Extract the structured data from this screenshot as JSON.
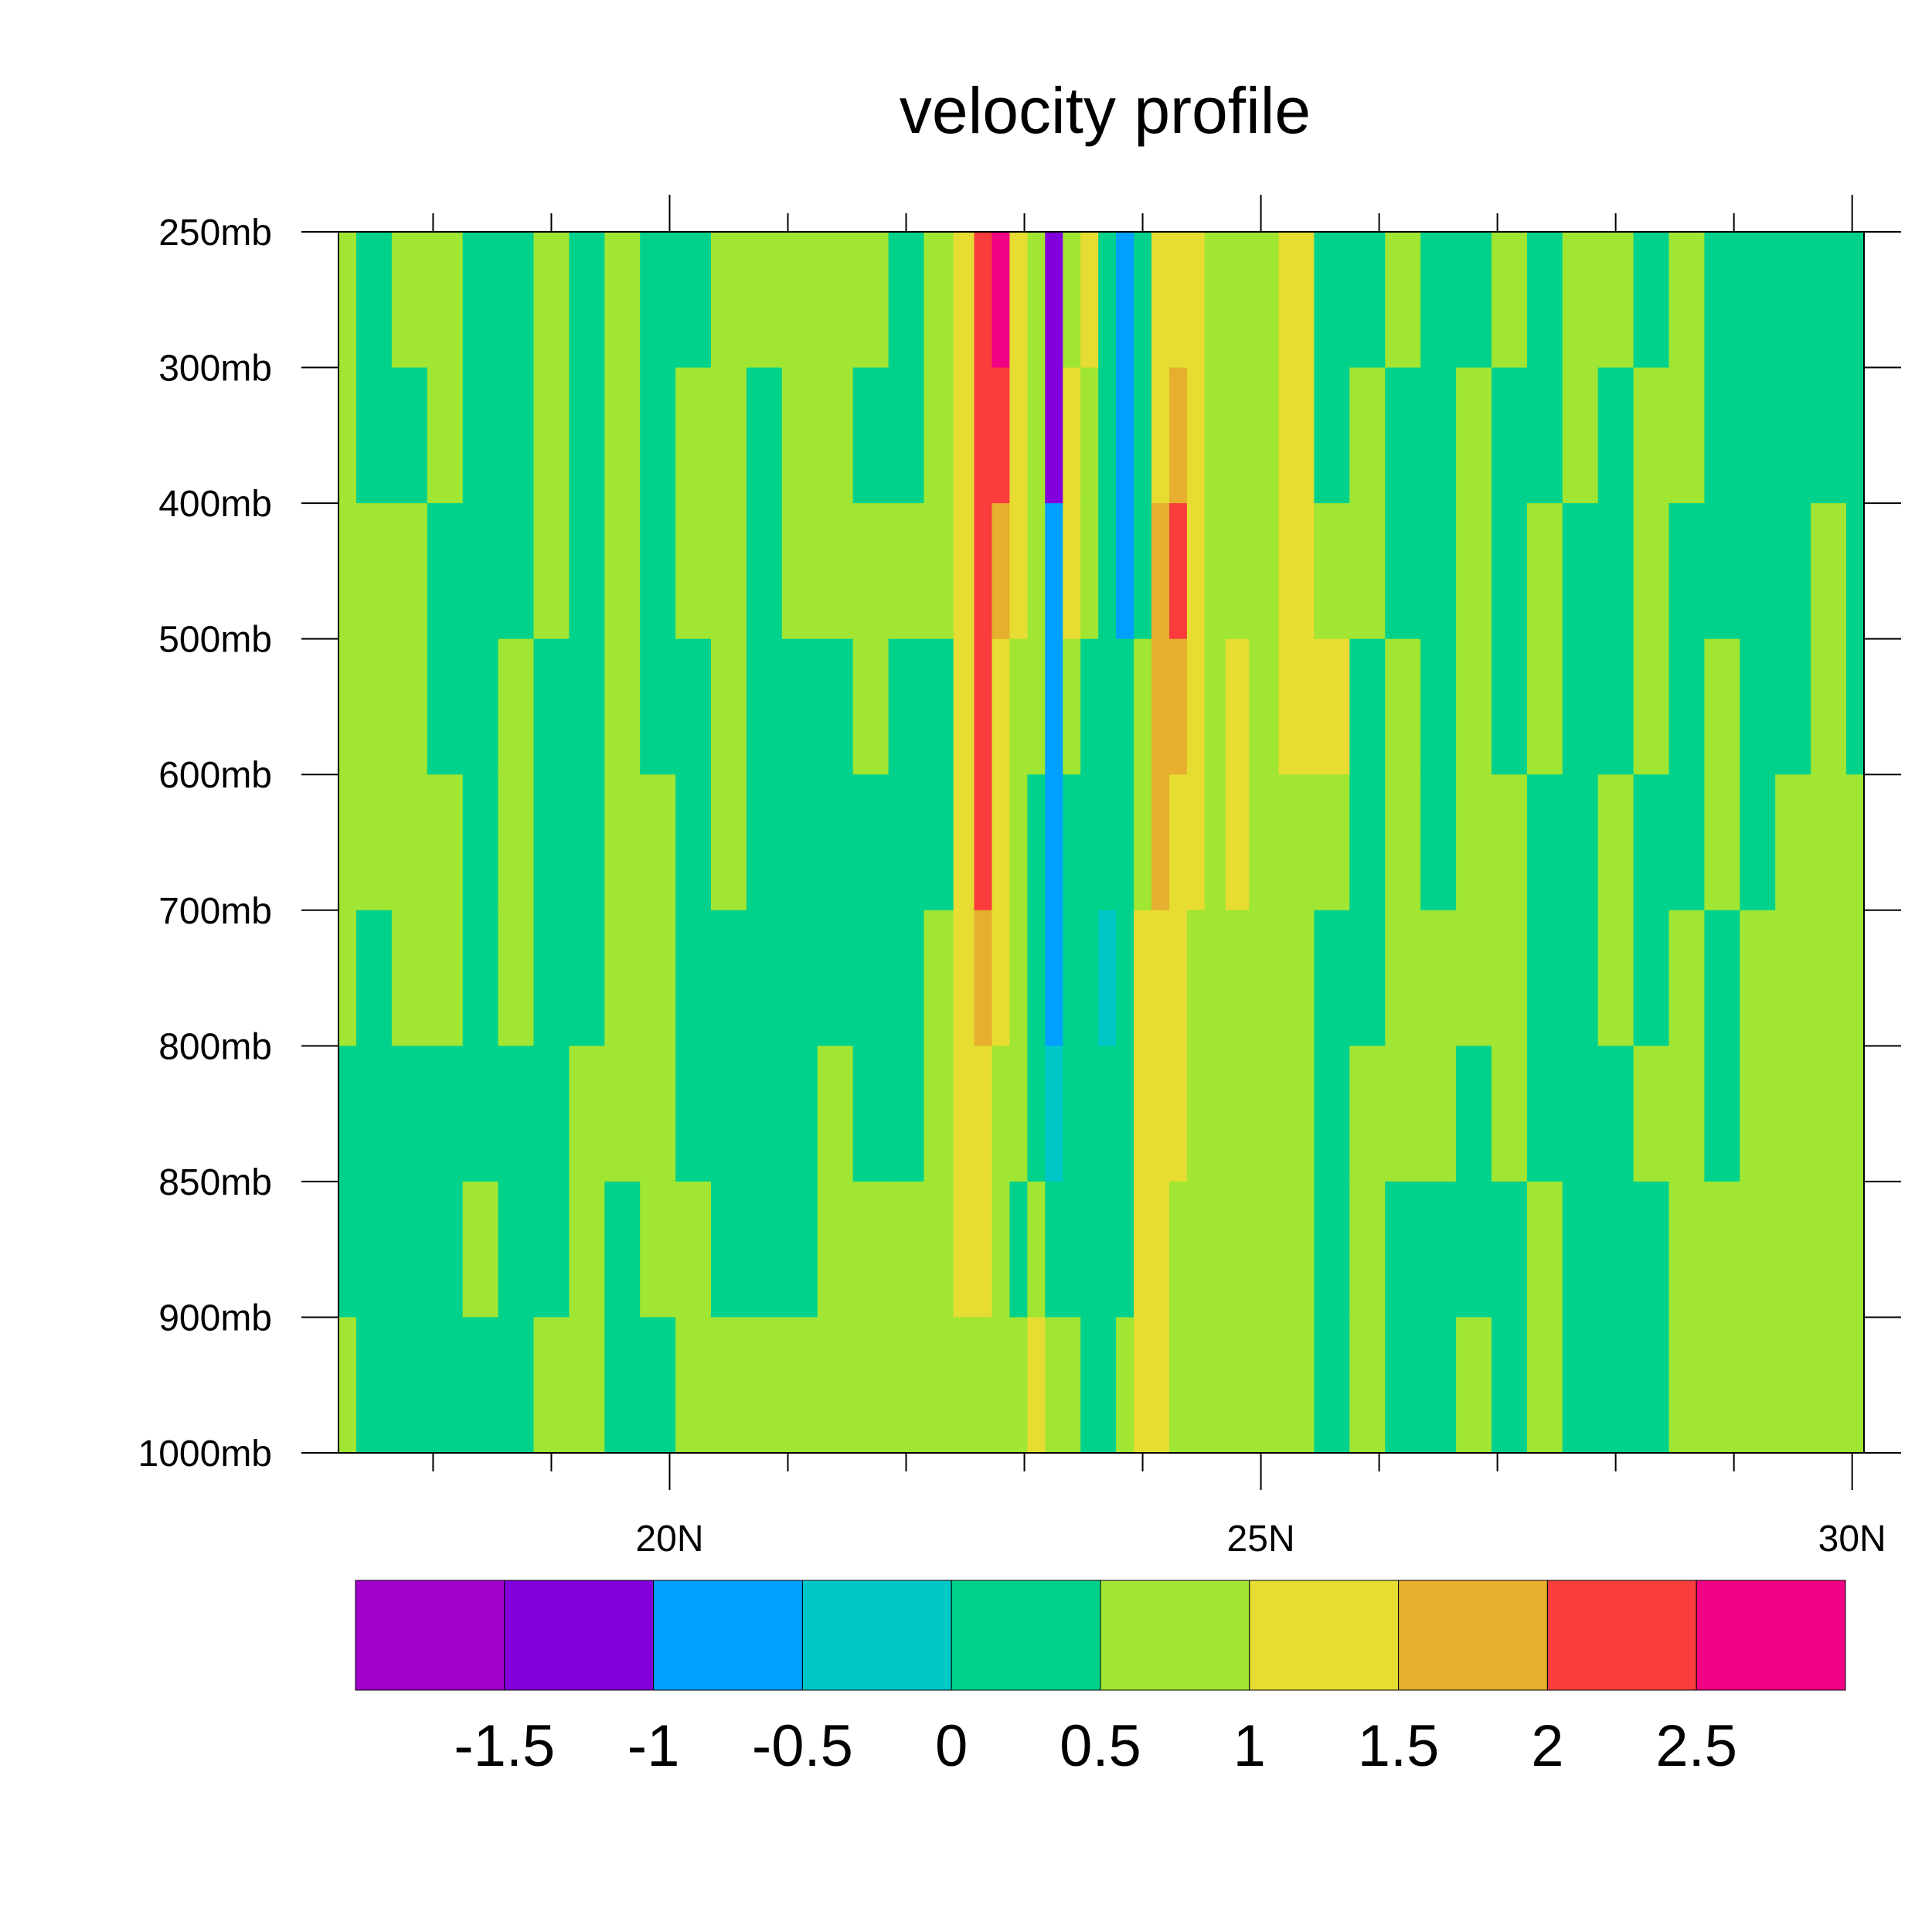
{
  "chart_data": {
    "type": "heatmap",
    "title": "velocity profile",
    "x_axis": {
      "ticks": [
        20,
        25,
        30
      ],
      "tick_labels": [
        "20N",
        "25N",
        "30N"
      ],
      "minor_ticks": [
        18,
        19,
        21,
        22,
        23,
        24,
        26,
        27,
        28,
        29
      ],
      "range": [
        17.2,
        30.1
      ]
    },
    "y_axis": {
      "levels": [
        250,
        300,
        400,
        500,
        600,
        700,
        800,
        850,
        900,
        1000
      ],
      "tick_labels": [
        "250mb",
        "300mb",
        "400mb",
        "500mb",
        "600mb",
        "700mb",
        "800mb",
        "850mb",
        "900mb",
        "1000mb"
      ]
    },
    "colorbar": {
      "labels": [
        "-1.5",
        "-1",
        "-0.5",
        "0",
        "0.5",
        "1",
        "1.5",
        "2",
        "2.5"
      ],
      "colors": [
        "#a000c8",
        "#8200dc",
        "#00a0ff",
        "#00c8c8",
        "#00d28c",
        "#a0e632",
        "#e6dc32",
        "#e6af2d",
        "#fa3c3c",
        "#f00082"
      ]
    },
    "columns": [
      {
        "x": 17.2,
        "values": [
          0.7,
          0.7,
          0.7,
          0.7,
          0.7,
          0.7,
          0.2,
          0.2,
          0.7,
          null
        ]
      },
      {
        "x": 17.5,
        "values": [
          0.2,
          0.2,
          0.7,
          0.7,
          0.7,
          0.2,
          0.2,
          0.2,
          0.2,
          null
        ]
      },
      {
        "x": 17.8,
        "values": [
          0.7,
          0.2,
          0.7,
          0.7,
          0.7,
          0.7,
          0.2,
          0.2,
          0.2,
          null
        ]
      },
      {
        "x": 18.1,
        "values": [
          0.7,
          0.7,
          0.2,
          0.2,
          0.7,
          0.7,
          0.2,
          0.2,
          0.2,
          0.2
        ]
      },
      {
        "x": 18.4,
        "values": [
          0.2,
          0.2,
          0.2,
          0.2,
          0.2,
          0.2,
          0.2,
          0.7,
          0.2,
          0.7
        ]
      },
      {
        "x": 18.7,
        "values": [
          0.2,
          0.2,
          0.2,
          0.7,
          0.7,
          0.7,
          0.2,
          0.2,
          0.2,
          0.2
        ]
      },
      {
        "x": 19.0,
        "values": [
          0.7,
          0.7,
          0.7,
          0.2,
          0.2,
          0.2,
          0.2,
          0.2,
          0.7,
          0.7
        ]
      },
      {
        "x": 19.3,
        "values": [
          0.2,
          0.2,
          0.2,
          0.2,
          0.2,
          0.2,
          0.7,
          0.7,
          0.7,
          0.2
        ]
      },
      {
        "x": 19.6,
        "values": [
          0.7,
          0.7,
          0.7,
          0.7,
          0.7,
          0.7,
          0.7,
          0.2,
          0.2,
          0.7
        ]
      },
      {
        "x": 19.9,
        "values": [
          0.2,
          0.2,
          0.2,
          0.2,
          0.7,
          0.7,
          0.7,
          0.7,
          0.2,
          null
        ]
      },
      {
        "x": 20.2,
        "values": [
          0.2,
          0.7,
          0.7,
          0.2,
          0.2,
          0.2,
          0.2,
          0.7,
          0.7,
          0.7
        ]
      },
      {
        "x": 20.5,
        "values": [
          0.7,
          0.7,
          0.7,
          0.7,
          0.7,
          0.2,
          0.2,
          0.2,
          0.7,
          null
        ]
      },
      {
        "x": 20.8,
        "values": [
          0.7,
          0.2,
          0.2,
          0.2,
          0.2,
          0.2,
          0.2,
          0.2,
          0.7,
          null
        ]
      },
      {
        "x": 21.1,
        "values": [
          0.7,
          0.7,
          0.7,
          0.2,
          0.2,
          0.2,
          0.2,
          0.2,
          0.7,
          null
        ]
      },
      {
        "x": 21.4,
        "values": [
          0.7,
          0.7,
          0.7,
          0.2,
          0.2,
          0.2,
          0.7,
          0.7,
          0.7,
          null
        ]
      },
      {
        "x": 21.7,
        "values": [
          0.7,
          0.2,
          0.7,
          0.7,
          0.2,
          0.2,
          0.2,
          0.7,
          0.7,
          null
        ]
      },
      {
        "x": 22.0,
        "values": [
          0.2,
          0.2,
          0.7,
          0.2,
          0.2,
          0.2,
          0.2,
          0.7,
          0.7,
          null
        ]
      },
      {
        "x": 22.3,
        "values": [
          0.7,
          0.7,
          0.7,
          0.2,
          0.2,
          0.7,
          0.7,
          0.7,
          0.7,
          null
        ]
      },
      {
        "x": 22.5,
        "values": [
          1.3,
          1.3,
          1.3,
          1.3,
          1.3,
          1.3,
          1.2,
          1.1,
          0.7,
          null
        ]
      },
      {
        "x": 22.65,
        "values": [
          2.3,
          2.3,
          2.3,
          2.3,
          2.3,
          1.8,
          1.3,
          1.1,
          0.7,
          null
        ]
      },
      {
        "x": 22.8,
        "values": [
          2.6,
          2.4,
          1.8,
          1.3,
          1.2,
          1.1,
          0.7,
          0.7,
          0.7,
          null
        ]
      },
      {
        "x": 22.95,
        "values": [
          1.3,
          1.3,
          1.2,
          0.7,
          0.7,
          0.7,
          0.7,
          0.2,
          0.7,
          null
        ]
      },
      {
        "x": 23.1,
        "values": [
          0.7,
          0.7,
          0.7,
          0.7,
          0.2,
          0.2,
          0.2,
          0.7,
          1.1,
          null
        ]
      },
      {
        "x": 23.25,
        "values": [
          -1.2,
          -1.2,
          -0.7,
          -0.7,
          -0.7,
          -0.7,
          -0.2,
          0.2,
          0.7,
          null
        ]
      },
      {
        "x": 23.4,
        "values": [
          0.7,
          1.1,
          1.1,
          0.7,
          0.2,
          0.2,
          0.2,
          0.2,
          0.7,
          null
        ]
      },
      {
        "x": 23.55,
        "values": [
          1.2,
          0.7,
          0.7,
          0.2,
          0.2,
          0.2,
          0.2,
          0.2,
          0.2,
          null
        ]
      },
      {
        "x": 23.7,
        "values": [
          0.2,
          0.2,
          0.2,
          0.2,
          0.2,
          -0.2,
          0.2,
          0.2,
          0.2,
          null
        ]
      },
      {
        "x": 23.85,
        "values": [
          -0.7,
          -0.7,
          -0.7,
          0.2,
          0.2,
          0.2,
          0.2,
          0.2,
          0.7,
          null
        ]
      },
      {
        "x": 24.0,
        "values": [
          0.2,
          0.2,
          0.2,
          0.7,
          0.7,
          1.1,
          1.2,
          1.3,
          1.1,
          null
        ]
      },
      {
        "x": 24.15,
        "values": [
          1.2,
          1.3,
          1.6,
          1.7,
          1.6,
          1.3,
          1.2,
          1.1,
          1.1,
          null
        ]
      },
      {
        "x": 24.3,
        "values": [
          1.3,
          1.6,
          2.1,
          1.8,
          1.3,
          1.1,
          1.1,
          0.7,
          0.7,
          null
        ]
      },
      {
        "x": 24.45,
        "values": [
          1.3,
          1.3,
          1.2,
          1.2,
          1.1,
          0.7,
          0.7,
          0.7,
          0.7,
          null
        ]
      },
      {
        "x": 24.6,
        "values": [
          0.7,
          0.7,
          0.7,
          0.7,
          0.7,
          0.7,
          0.7,
          0.7,
          0.7,
          null
        ]
      },
      {
        "x": 24.8,
        "values": [
          0.7,
          0.7,
          0.7,
          1.1,
          1.1,
          0.7,
          0.7,
          0.7,
          0.7,
          null
        ]
      },
      {
        "x": 25.0,
        "values": [
          0.7,
          0.7,
          0.7,
          0.7,
          0.7,
          0.7,
          0.7,
          0.7,
          0.7,
          null
        ]
      },
      {
        "x": 25.3,
        "values": [
          1.1,
          1.1,
          1.1,
          1.1,
          0.7,
          0.7,
          0.7,
          0.7,
          0.7,
          null
        ]
      },
      {
        "x": 25.6,
        "values": [
          0.2,
          0.2,
          0.7,
          1.1,
          0.7,
          0.2,
          0.2,
          0.2,
          0.2,
          null
        ]
      },
      {
        "x": 25.9,
        "values": [
          0.2,
          0.7,
          0.7,
          0.2,
          0.2,
          0.2,
          0.7,
          0.7,
          0.7,
          null
        ]
      },
      {
        "x": 26.2,
        "values": [
          0.7,
          0.2,
          0.2,
          0.7,
          0.7,
          0.7,
          0.7,
          0.2,
          0.2,
          null
        ]
      },
      {
        "x": 26.5,
        "values": [
          0.2,
          0.2,
          0.2,
          0.2,
          0.2,
          0.7,
          0.7,
          0.2,
          0.2,
          0.2
        ]
      },
      {
        "x": 26.8,
        "values": [
          0.2,
          0.7,
          0.7,
          0.7,
          0.7,
          0.7,
          0.2,
          0.2,
          0.7,
          0.7
        ]
      },
      {
        "x": 27.1,
        "values": [
          0.7,
          0.2,
          0.2,
          0.2,
          0.7,
          0.7,
          0.7,
          0.2,
          0.2,
          0.7
        ]
      },
      {
        "x": 27.4,
        "values": [
          0.2,
          0.2,
          0.7,
          0.7,
          0.2,
          0.2,
          0.2,
          0.7,
          0.7,
          0.2
        ]
      },
      {
        "x": 27.7,
        "values": [
          0.7,
          0.7,
          0.2,
          0.2,
          0.2,
          0.2,
          0.2,
          0.2,
          0.2,
          0.2
        ]
      },
      {
        "x": 28.0,
        "values": [
          0.7,
          0.2,
          0.2,
          0.2,
          0.7,
          0.7,
          0.2,
          0.2,
          0.2,
          0.2
        ]
      },
      {
        "x": 28.3,
        "values": [
          0.2,
          0.7,
          0.7,
          0.7,
          0.2,
          0.2,
          0.7,
          0.2,
          0.2,
          0.7
        ]
      },
      {
        "x": 28.6,
        "values": [
          0.7,
          0.7,
          0.2,
          0.2,
          0.2,
          0.7,
          0.7,
          0.7,
          0.7,
          0.7
        ]
      },
      {
        "x": 28.9,
        "values": [
          0.2,
          0.2,
          0.2,
          0.7,
          0.7,
          0.2,
          0.2,
          0.7,
          0.7,
          0.7
        ]
      },
      {
        "x": 29.2,
        "values": [
          0.2,
          0.2,
          0.2,
          0.2,
          0.2,
          0.7,
          0.7,
          0.7,
          0.7,
          0.7
        ]
      },
      {
        "x": 29.5,
        "values": [
          0.2,
          0.2,
          0.2,
          0.2,
          0.7,
          0.7,
          0.7,
          0.7,
          0.7,
          0.7
        ]
      },
      {
        "x": 29.8,
        "values": [
          0.2,
          0.2,
          0.7,
          0.7,
          0.7,
          0.7,
          0.7,
          0.7,
          0.7,
          0.7
        ]
      },
      {
        "x": 30.1,
        "values": [
          0.2,
          0.2,
          0.2,
          0.2,
          0.7,
          0.7,
          0.7,
          0.7,
          0.7,
          0.7
        ]
      }
    ]
  }
}
